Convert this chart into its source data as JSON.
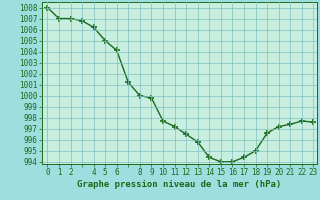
{
  "x": [
    0,
    1,
    2,
    3,
    4,
    5,
    6,
    7,
    8,
    9,
    10,
    11,
    12,
    13,
    14,
    15,
    16,
    17,
    18,
    19,
    20,
    21,
    22,
    23
  ],
  "y": [
    1008.0,
    1007.0,
    1007.0,
    1006.8,
    1006.2,
    1005.0,
    1004.1,
    1001.2,
    1000.0,
    999.8,
    997.7,
    997.2,
    996.5,
    995.8,
    994.4,
    994.0,
    994.0,
    994.4,
    995.0,
    996.6,
    997.2,
    997.4,
    997.7,
    997.6
  ],
  "ylim_min": 993.8,
  "ylim_max": 1008.5,
  "xlim_min": -0.5,
  "xlim_max": 23.3,
  "yticks": [
    994,
    995,
    996,
    997,
    998,
    999,
    1000,
    1001,
    1002,
    1003,
    1004,
    1005,
    1006,
    1007,
    1008
  ],
  "xlabel": "Graphe pression niveau de la mer (hPa)",
  "line_color": "#1a6b1a",
  "marker_color": "#1a6b1a",
  "bg_color": "#9edede",
  "plot_bg_color": "#c8eee0",
  "grid_color": "#80c0c0",
  "tick_label_color": "#1a6b1a",
  "xlabel_color": "#1a6b1a",
  "marker_size": 4.0,
  "line_width": 1.0,
  "tick_fontsize": 5.5,
  "xlabel_fontsize": 6.5
}
